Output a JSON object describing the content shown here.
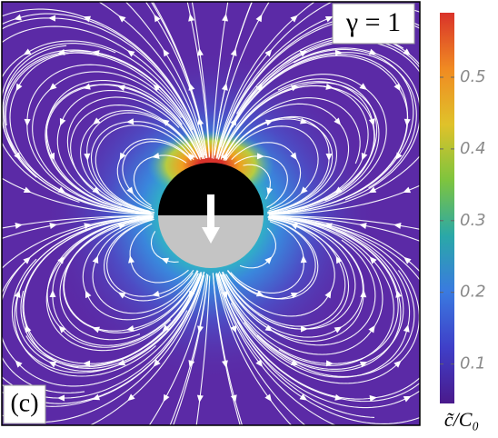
{
  "chart_data": {
    "type": "heatmap",
    "annotations": [
      "γ = 1",
      "(c)"
    ],
    "colorbar": {
      "label": "c̃/C₀",
      "lim": [
        0.045,
        0.59
      ],
      "ticks": [
        0.1,
        0.2,
        0.3,
        0.4,
        0.5
      ],
      "colormap": [
        "#4a1a8c",
        "#3f3fc8",
        "#3a7ae0",
        "#2aa8a8",
        "#7ec43e",
        "#e0c22a",
        "#f08a22",
        "#d9322a"
      ]
    }
  }
}
